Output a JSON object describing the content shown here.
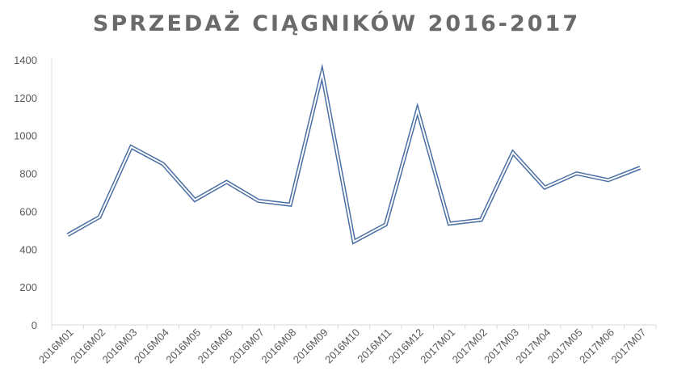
{
  "chart_data": {
    "type": "line",
    "title": "SPRZEDAŻ CIĄGNIKÓW 2016-2017",
    "categories": [
      "2016M01",
      "2016M02",
      "2016M03",
      "2016M04",
      "2016M05",
      "2016M06",
      "2016M07",
      "2016M08",
      "2016M09",
      "2016M10",
      "2016M11",
      "2016M12",
      "2017M01",
      "2017M02",
      "2017M03",
      "2017M04",
      "2017M05",
      "2017M06",
      "2017M07"
    ],
    "series": [
      {
        "values": [
          475,
          570,
          940,
          850,
          660,
          755,
          655,
          635,
          1330,
          440,
          530,
          1135,
          535,
          555,
          910,
          725,
          800,
          765,
          830
        ]
      }
    ],
    "ylim": [
      0,
      1400
    ],
    "yticks": [
      0,
      200,
      400,
      600,
      800,
      1000,
      1200,
      1400
    ],
    "grid": false,
    "legend": "none",
    "colors": {
      "line": "#4a6fa5",
      "axis": "#d9d9d9",
      "title": "#6a6a6a",
      "tick": "#595959"
    }
  }
}
